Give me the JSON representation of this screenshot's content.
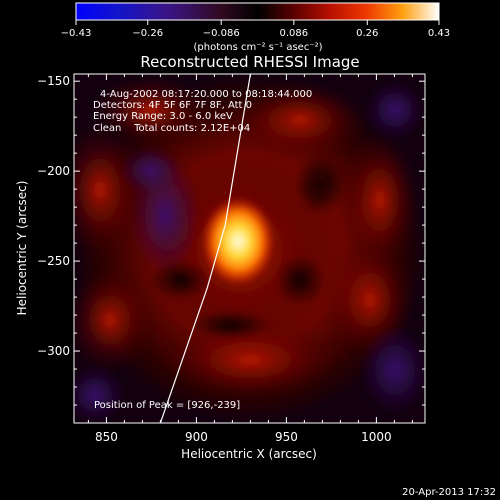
{
  "colorbar": {
    "min": -0.43,
    "max": 0.43,
    "tick_labels": [
      "-0.43",
      "-0.26",
      "-0.086",
      "0.086",
      "0.26",
      "0.43"
    ],
    "unit_label": "(photons cm⁻² s⁻¹ asec⁻²)"
  },
  "chart_data": {
    "type": "heatmap",
    "title": "Reconstructed RHESSI Image",
    "xlabel": "Heliocentric X (arcsec)",
    "ylabel": "Heliocentric Y (arcsec)",
    "xlim": [
      832,
      1027
    ],
    "ylim": [
      -340,
      -146
    ],
    "xticks": [
      850,
      900,
      950,
      1000
    ],
    "xtick_labels": [
      "850",
      "900",
      "950",
      "1000"
    ],
    "yticks": [
      -150,
      -200,
      -250,
      -300
    ],
    "ytick_labels": [
      "−150",
      "−200",
      "−250",
      "−300"
    ],
    "annotations": [
      "4-Aug-2002 08:17:20.000 to 08:18:44.000",
      "Detectors: 4F 5F 6F 7F 8F, Att 0",
      "Energy Range: 3.0 - 6.0 keV",
      "Clean    Total counts: 2.12E+04"
    ],
    "peak_label": "Position of Peak = [926,-239]",
    "peak": [
      926,
      -239
    ],
    "peak_value": 0.43,
    "limb_line": [
      [
        880,
        -340
      ],
      [
        906,
        -265
      ],
      [
        916,
        -230
      ],
      [
        930,
        -146
      ]
    ]
  },
  "footer": {
    "timestamp": "20-Apr-2013 17:32"
  }
}
